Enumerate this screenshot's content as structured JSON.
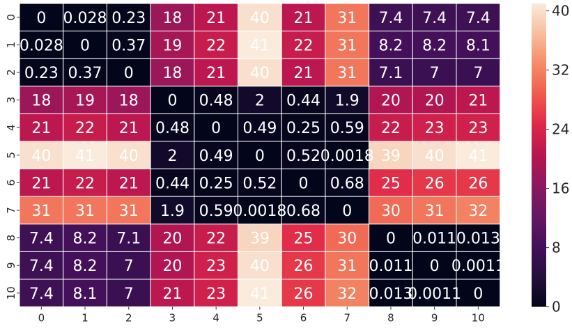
{
  "chart_data": {
    "type": "heatmap",
    "x_labels": [
      "0",
      "1",
      "2",
      "3",
      "4",
      "5",
      "6",
      "7",
      "8",
      "9",
      "10"
    ],
    "y_labels": [
      "0",
      "1",
      "2",
      "3",
      "4",
      "5",
      "6",
      "7",
      "8",
      "9",
      "10"
    ],
    "values": [
      [
        0,
        0.028,
        0.23,
        18,
        21,
        40,
        21,
        31,
        7.4,
        7.4,
        7.4
      ],
      [
        0.028,
        0,
        0.37,
        19,
        22,
        41,
        22,
        31,
        8.2,
        8.2,
        8.1
      ],
      [
        0.23,
        0.37,
        0,
        18,
        21,
        40,
        21,
        31,
        7.1,
        7,
        7
      ],
      [
        18,
        19,
        18,
        0,
        0.48,
        2,
        0.44,
        1.9,
        20,
        20,
        21
      ],
      [
        21,
        22,
        21,
        0.48,
        0,
        0.49,
        0.25,
        0.59,
        22,
        23,
        23
      ],
      [
        40,
        41,
        40,
        2,
        0.49,
        0,
        0.52,
        0.0018,
        39,
        40,
        41
      ],
      [
        21,
        22,
        21,
        0.44,
        0.25,
        0.52,
        0,
        0.68,
        25,
        26,
        26
      ],
      [
        31,
        31,
        31,
        1.9,
        0.59,
        0.0018,
        0.68,
        0,
        30,
        31,
        32
      ],
      [
        7.4,
        8.2,
        7.1,
        20,
        22,
        39,
        25,
        30,
        0,
        0.011,
        0.013
      ],
      [
        7.4,
        8.2,
        7,
        20,
        23,
        40,
        26,
        31,
        0.011,
        0,
        0.0011
      ],
      [
        7.4,
        8.1,
        7,
        21,
        23,
        41,
        26,
        32,
        0.013,
        0.0011,
        0
      ]
    ],
    "colorbar": {
      "min": 0,
      "max": 41,
      "ticks": [
        0,
        8,
        16,
        24,
        32,
        40
      ],
      "colormap": "rocket"
    },
    "annotations": true,
    "cell_separator_color": "#ffffff",
    "annotation_text_color": "#ffffff"
  }
}
